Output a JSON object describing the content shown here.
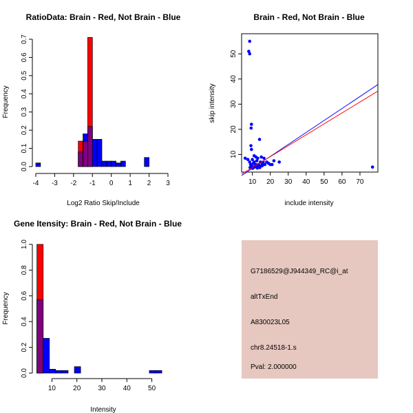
{
  "colors": {
    "red": "#ff0000",
    "blue": "#0000ff",
    "overlap": "#7f007f",
    "info_bg": "#e6c8c0",
    "pval": "#b00000",
    "axis": "#000000"
  },
  "chart_data": [
    {
      "id": "ratio",
      "type": "bar",
      "title": "RatioData: Brain - Red, Not Brain - Blue",
      "xlabel": "Log2 Ratio Skip/Include",
      "ylabel": "Frequency",
      "xlim": [
        -4,
        3
      ],
      "ylim": [
        0,
        0.7
      ],
      "xticks": [
        -4,
        -3,
        -2,
        -1,
        0,
        1,
        2,
        3
      ],
      "yticks": [
        0.0,
        0.1,
        0.2,
        0.3,
        0.4,
        0.5,
        0.6,
        0.7
      ],
      "bin_width": 0.25,
      "bin_start": -4,
      "series": [
        {
          "name": "Not Brain",
          "color": "blue",
          "values": [
            0.02,
            0,
            0,
            0,
            0,
            0,
            0,
            0,
            0,
            0.08,
            0.18,
            0.22,
            0.15,
            0.15,
            0.03,
            0.03,
            0.03,
            0.02,
            0.03,
            0,
            0,
            0,
            0,
            0.05,
            0,
            0,
            0,
            0
          ]
        },
        {
          "name": "Brain",
          "color": "red",
          "values": [
            0,
            0,
            0,
            0,
            0,
            0,
            0,
            0,
            0,
            0.14,
            0.14,
            0.71,
            0,
            0,
            0,
            0,
            0,
            0,
            0,
            0,
            0,
            0,
            0,
            0,
            0,
            0,
            0,
            0
          ]
        }
      ]
    },
    {
      "id": "scatter",
      "type": "scatter",
      "title": "Brain - Red, Not Brain - Blue",
      "xlabel": "include intensity",
      "ylabel": "skip intensity",
      "xlim": [
        4,
        80
      ],
      "ylim": [
        3,
        58
      ],
      "xticks": [
        10,
        20,
        30,
        40,
        50,
        60,
        70
      ],
      "yticks": [
        10,
        20,
        30,
        40,
        50
      ],
      "points": [
        [
          8.5,
          55
        ],
        [
          8,
          51
        ],
        [
          8.5,
          50
        ],
        [
          9.5,
          22
        ],
        [
          9.3,
          20.5
        ],
        [
          9.2,
          13.5
        ],
        [
          9.5,
          12
        ],
        [
          14,
          16
        ],
        [
          6,
          8.5
        ],
        [
          7.5,
          8
        ],
        [
          8.5,
          7
        ],
        [
          9,
          6
        ],
        [
          9.5,
          5.5
        ],
        [
          10,
          5
        ],
        [
          10.5,
          6.5
        ],
        [
          11,
          7
        ],
        [
          11.5,
          5.5
        ],
        [
          12,
          6
        ],
        [
          12.5,
          7.5
        ],
        [
          13,
          5
        ],
        [
          13.5,
          6
        ],
        [
          14,
          5.5
        ],
        [
          14.5,
          7
        ],
        [
          15,
          9
        ],
        [
          15.5,
          6
        ],
        [
          16,
          7
        ],
        [
          17,
          6
        ],
        [
          18,
          7
        ],
        [
          19,
          6.5
        ],
        [
          20,
          6
        ],
        [
          21,
          6
        ],
        [
          22,
          7.5
        ],
        [
          25,
          7
        ],
        [
          8.7,
          4.8
        ],
        [
          9.4,
          5.2
        ],
        [
          10.2,
          4.5
        ],
        [
          11.3,
          5
        ],
        [
          12.8,
          4.6
        ],
        [
          14.2,
          4.8
        ],
        [
          15.5,
          5.5
        ],
        [
          16.5,
          8.5
        ],
        [
          12,
          9
        ],
        [
          10,
          8
        ],
        [
          13,
          8.5
        ],
        [
          11,
          9.5
        ],
        [
          77,
          5
        ]
      ],
      "fit_lines": [
        {
          "name": "Not Brain fit",
          "color": "blue",
          "x": [
            4,
            80
          ],
          "y": [
            1.6,
            37.8
          ]
        },
        {
          "name": "Brain fit",
          "color": "red",
          "x": [
            4,
            80
          ],
          "y": [
            2.2,
            35.2
          ]
        }
      ]
    },
    {
      "id": "intensity",
      "type": "bar",
      "title": "Gene Itensity: Brain - Red, Not Brain - Blue",
      "xlabel": "Intensity",
      "ylabel": "Frequency",
      "xlim": [
        3,
        57
      ],
      "ylim": [
        0,
        1.0
      ],
      "xticks": [
        10,
        20,
        30,
        40,
        50
      ],
      "yticks": [
        0.0,
        0.2,
        0.4,
        0.6,
        0.8,
        1.0
      ],
      "bin_width": 2.5,
      "bin_start": 4,
      "series": [
        {
          "name": "Not Brain",
          "color": "blue",
          "values": [
            0.57,
            0.27,
            0.03,
            0.02,
            0.02,
            0,
            0.05,
            0,
            0,
            0,
            0,
            0,
            0,
            0,
            0,
            0,
            0,
            0,
            0.02,
            0.02
          ]
        },
        {
          "name": "Brain",
          "color": "red",
          "values": [
            1.0,
            0,
            0,
            0,
            0,
            0,
            0,
            0,
            0,
            0,
            0,
            0,
            0,
            0,
            0,
            0,
            0,
            0,
            0,
            0
          ]
        }
      ]
    }
  ],
  "info": {
    "probe": "G7186529@J944349_RC@i_at",
    "event": "altTxEnd",
    "gene": "A830023L05",
    "location": "chr8.24518-1.s",
    "pval": "Pval: 2.000000"
  }
}
